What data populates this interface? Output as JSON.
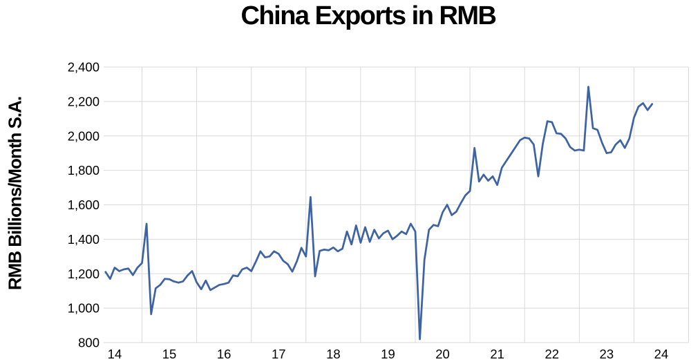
{
  "page": {
    "background": "#ffffff"
  },
  "chart_data": {
    "type": "line",
    "title": "China Exports in RMB",
    "ylabel": "RMB Billions/Month S.A.",
    "xlabel": "",
    "ylim": [
      800,
      2400
    ],
    "x_domain_years": [
      2014.2983,
      2025.0
    ],
    "grid": true,
    "legend_position": "none",
    "line_color": "#3e63a3",
    "grid_color": "#d9d9d9",
    "text_color": "#000000",
    "y_ticks": [
      {
        "value": 800,
        "label": "800"
      },
      {
        "value": 1000,
        "label": "1,000"
      },
      {
        "value": 1200,
        "label": "1,200"
      },
      {
        "value": 1400,
        "label": "1,400"
      },
      {
        "value": 1600,
        "label": "1,600"
      },
      {
        "value": 1800,
        "label": "1,800"
      },
      {
        "value": 2000,
        "label": "2,000"
      },
      {
        "value": 2200,
        "label": "2,200"
      },
      {
        "value": 2400,
        "label": "2,400"
      }
    ],
    "x_ticks": [
      {
        "t": 2014.5,
        "label": "14"
      },
      {
        "t": 2015.5,
        "label": "15"
      },
      {
        "t": 2016.5,
        "label": "16"
      },
      {
        "t": 2017.5,
        "label": "17"
      },
      {
        "t": 2018.5,
        "label": "18"
      },
      {
        "t": 2019.5,
        "label": "19"
      },
      {
        "t": 2020.5,
        "label": "20"
      },
      {
        "t": 2021.5,
        "label": "21"
      },
      {
        "t": 2022.5,
        "label": "22"
      },
      {
        "t": 2023.5,
        "label": "23"
      },
      {
        "t": 2024.5,
        "label": "24"
      }
    ],
    "year_gridlines": [
      2015,
      2016,
      2017,
      2018,
      2019,
      2020,
      2021,
      2022,
      2023,
      2024,
      2025
    ],
    "series": [
      {
        "name": "China exports, RMB billions per month, seasonally adjusted",
        "start": "2014-05",
        "frequency": "monthly",
        "values": [
          1210,
          1170,
          1235,
          1215,
          1225,
          1230,
          1192,
          1235,
          1262,
          1490,
          965,
          1115,
          1135,
          1170,
          1168,
          1155,
          1148,
          1155,
          1190,
          1215,
          1150,
          1110,
          1160,
          1105,
          1120,
          1135,
          1140,
          1148,
          1190,
          1185,
          1225,
          1235,
          1215,
          1270,
          1330,
          1295,
          1300,
          1330,
          1315,
          1275,
          1255,
          1212,
          1272,
          1350,
          1300,
          1645,
          1185,
          1332,
          1340,
          1336,
          1352,
          1330,
          1345,
          1445,
          1370,
          1480,
          1380,
          1470,
          1385,
          1455,
          1405,
          1435,
          1450,
          1400,
          1420,
          1445,
          1430,
          1490,
          1445,
          820,
          1280,
          1455,
          1483,
          1476,
          1556,
          1600,
          1540,
          1560,
          1610,
          1655,
          1680,
          1930,
          1735,
          1775,
          1740,
          1765,
          1715,
          1815,
          1855,
          1895,
          1935,
          1975,
          1990,
          1985,
          1950,
          1765,
          1955,
          2085,
          2080,
          2015,
          2012,
          1985,
          1935,
          1915,
          1920,
          1915,
          2285,
          2045,
          2035,
          1960,
          1900,
          1905,
          1950,
          1975,
          1930,
          1985,
          2105,
          2170,
          2190,
          2150,
          2185
        ]
      }
    ]
  }
}
